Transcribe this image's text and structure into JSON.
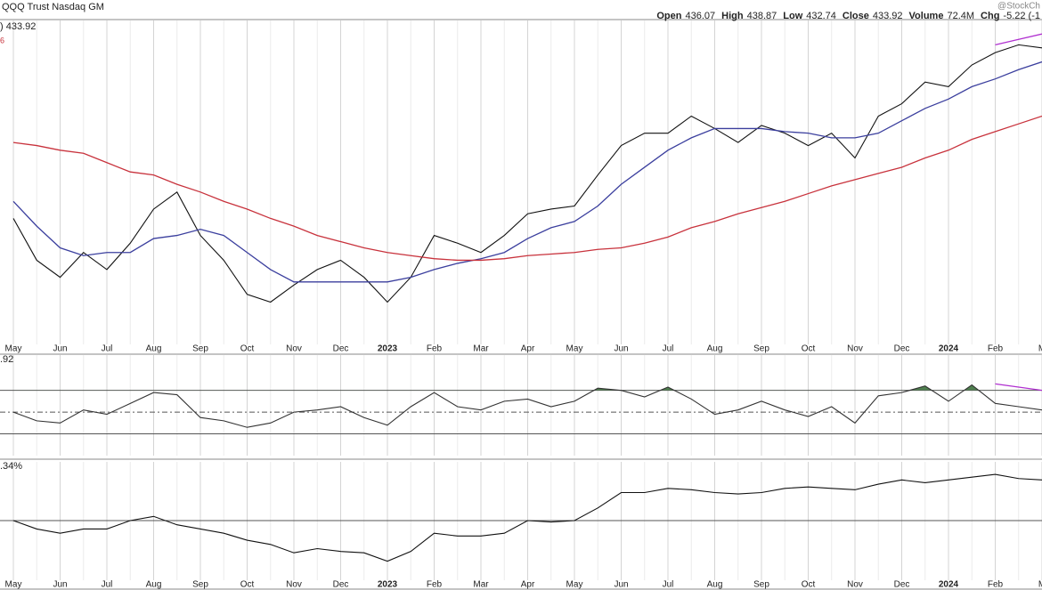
{
  "header": {
    "title": "QQQ Trust Nasdaq GM",
    "watermark": "@StockCh",
    "quote": [
      {
        "label": "Open",
        "value": "436.07"
      },
      {
        "label": "High",
        "value": "438.87"
      },
      {
        "label": "Low",
        "value": "432.74"
      },
      {
        "label": "Close",
        "value": "433.92"
      },
      {
        "label": "Volume",
        "value": "72.4M"
      },
      {
        "label": "Chg",
        "value": "-5.22 (-1"
      }
    ]
  },
  "chart_data": [
    {
      "type": "line",
      "price_label": ") 433.92",
      "ma_label": "6",
      "categories": [
        "May",
        null,
        "Jun",
        null,
        "Jul",
        null,
        "Aug",
        null,
        "Sep",
        null,
        "Oct",
        null,
        "Nov",
        null,
        "Dec",
        null,
        "2023",
        null,
        "Feb",
        null,
        "Mar",
        null,
        "Apr",
        null,
        "May",
        null,
        "Jun",
        null,
        "Jul",
        null,
        "Aug",
        null,
        "Sep",
        null,
        "Oct",
        null,
        "Nov",
        null,
        "Dec",
        null,
        "2024",
        null,
        "Feb",
        null,
        "M"
      ],
      "ylim": [
        245,
        450
      ],
      "series": [
        {
          "color": "#111111",
          "values": [
            324,
            297,
            286,
            302,
            291,
            308,
            330,
            341,
            313,
            297,
            275,
            270,
            281,
            291,
            297,
            286,
            270,
            286,
            313,
            308,
            302,
            313,
            327,
            330,
            332,
            352,
            371,
            379,
            379,
            390,
            382,
            373,
            384,
            379,
            371,
            379,
            363,
            390,
            398,
            412,
            409,
            423,
            431,
            436,
            434
          ]
        },
        {
          "color": "#3b3f9e",
          "values": [
            335,
            319,
            305,
            300,
            302,
            302,
            311,
            313,
            317,
            313,
            302,
            291,
            283,
            283,
            283,
            283,
            283,
            286,
            291,
            295,
            298,
            302,
            311,
            318,
            322,
            332,
            346,
            357,
            368,
            376,
            382,
            382,
            382,
            380,
            379,
            376,
            376,
            379,
            387,
            395,
            401,
            409,
            414,
            420,
            425
          ]
        },
        {
          "color": "#c8323c",
          "values": [
            373,
            371,
            368,
            366,
            360,
            354,
            352,
            346,
            341,
            335,
            330,
            324,
            319,
            313,
            309,
            305,
            302,
            300,
            298,
            297,
            297,
            298,
            300,
            301,
            302,
            304,
            305,
            308,
            312,
            318,
            322,
            327,
            331,
            335,
            340,
            345,
            349,
            353,
            357,
            363,
            368,
            375,
            380,
            385,
            390
          ]
        },
        {
          "color": "#b030d0",
          "values": [
            null,
            null,
            null,
            null,
            null,
            null,
            null,
            null,
            null,
            null,
            null,
            null,
            null,
            null,
            null,
            null,
            null,
            null,
            null,
            null,
            null,
            null,
            null,
            null,
            null,
            null,
            null,
            null,
            null,
            null,
            null,
            null,
            null,
            null,
            null,
            null,
            null,
            null,
            null,
            null,
            null,
            null,
            436,
            439.5,
            443
          ]
        }
      ]
    },
    {
      "type": "line",
      "label": ".92",
      "ylim": [
        10,
        100
      ],
      "hlines": [
        70,
        50,
        30
      ],
      "dashed": [
        false,
        true,
        false
      ],
      "fill": {
        "color": "#4f7f4f",
        "above": 70
      },
      "series": [
        {
          "color": "#333333",
          "values": [
            50,
            42,
            40,
            52,
            48,
            58,
            68,
            66,
            45,
            42,
            36,
            40,
            50,
            52,
            55,
            45,
            38,
            55,
            68,
            55,
            52,
            60,
            62,
            55,
            60,
            72,
            70,
            64,
            73,
            62,
            48,
            52,
            60,
            52,
            46,
            55,
            40,
            65,
            68,
            74,
            60,
            75,
            58,
            55,
            52
          ]
        },
        {
          "color": "#b030d0",
          "values": [
            null,
            null,
            null,
            null,
            null,
            null,
            null,
            null,
            null,
            null,
            null,
            null,
            null,
            null,
            null,
            null,
            null,
            null,
            null,
            null,
            null,
            null,
            null,
            null,
            null,
            null,
            null,
            null,
            null,
            null,
            null,
            null,
            null,
            null,
            null,
            null,
            null,
            null,
            null,
            null,
            null,
            null,
            76,
            73,
            70
          ]
        }
      ]
    },
    {
      "type": "line",
      "label": ".34%",
      "categories": [
        "May",
        null,
        "Jun",
        null,
        "Jul",
        null,
        "Aug",
        null,
        "Sep",
        null,
        "Oct",
        null,
        "Nov",
        null,
        "Dec",
        null,
        "2023",
        null,
        "Feb",
        null,
        "Mar",
        null,
        "Apr",
        null,
        "May",
        null,
        "Jun",
        null,
        "Jul",
        null,
        "Aug",
        null,
        "Sep",
        null,
        "Oct",
        null,
        "Nov",
        null,
        "Dec",
        null,
        "2024",
        null,
        "Feb",
        null,
        "M"
      ],
      "ylim": [
        -40,
        40
      ],
      "hlines": [
        0
      ],
      "dashed": [
        false
      ],
      "series": [
        {
          "color": "#111111",
          "values": [
            0,
            -6,
            -9,
            -6,
            -6,
            0,
            3,
            -3,
            -6,
            -9,
            -14,
            -17,
            -23,
            -20,
            -22,
            -23,
            -29,
            -22,
            -9,
            -11,
            -11,
            -9,
            0,
            -1,
            0,
            9,
            20,
            20,
            23,
            22,
            20,
            19,
            20,
            23,
            24,
            23,
            22,
            26,
            29,
            27,
            29,
            31,
            33,
            30,
            29
          ]
        }
      ]
    }
  ]
}
